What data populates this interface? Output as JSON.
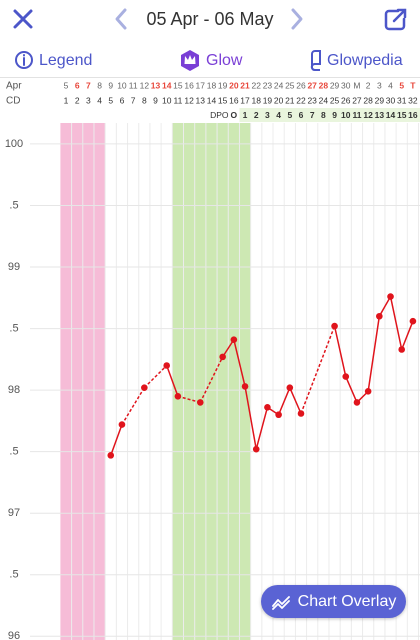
{
  "header": {
    "date_range": "05 Apr - 06 May"
  },
  "toolbar": {
    "legend": "Legend",
    "glow": "Glow",
    "glowpedia": "Glowpedia"
  },
  "button": {
    "label": "Chart Overlay"
  },
  "chart_data": {
    "type": "line",
    "month_label": "Apr",
    "cd_label": "CD",
    "dpo_label": "DPO",
    "dates": [
      "5",
      "6",
      "7",
      "8",
      "9",
      "10",
      "11",
      "12",
      "13",
      "14",
      "15",
      "16",
      "17",
      "18",
      "19",
      "20",
      "21",
      "22",
      "23",
      "24",
      "25",
      "26",
      "27",
      "28",
      "29",
      "30",
      "M",
      "2",
      "3",
      "4",
      "5",
      "T"
    ],
    "red_dates": [
      1,
      2,
      8,
      9,
      15,
      16,
      22,
      23,
      30,
      31
    ],
    "x": [
      1,
      2,
      3,
      4,
      5,
      6,
      7,
      8,
      9,
      10,
      11,
      12,
      13,
      14,
      15,
      16,
      17,
      18,
      19,
      20,
      21,
      22,
      23,
      24,
      25,
      26,
      27,
      28,
      29,
      30,
      31,
      32
    ],
    "dpo": [
      null,
      null,
      null,
      null,
      null,
      null,
      null,
      null,
      null,
      null,
      null,
      null,
      null,
      null,
      null,
      "O",
      1,
      2,
      3,
      4,
      5,
      6,
      7,
      8,
      9,
      10,
      11,
      12,
      13,
      14,
      15,
      16
    ],
    "values": [
      null,
      null,
      null,
      null,
      97.47,
      97.72,
      null,
      98.02,
      null,
      98.2,
      97.95,
      null,
      97.9,
      null,
      98.27,
      98.41,
      98.03,
      97.52,
      97.86,
      97.8,
      98.02,
      97.81,
      null,
      null,
      98.52,
      98.11,
      97.9,
      97.99,
      98.6,
      98.76,
      98.33,
      98.56
    ],
    "color": "#e0141c",
    "xlim": [
      0.5,
      32.5
    ],
    "ylim": [
      95.97,
      100.17
    ],
    "yticks": [
      100,
      {
        "value": 99.5,
        "label": ".5"
      },
      99,
      {
        "value": 98.5,
        "label": ".5"
      },
      98,
      {
        "value": 97.5,
        "label": ".5"
      },
      97,
      {
        "value": 96.5,
        "label": ".5"
      },
      96
    ],
    "grid": true,
    "period_band": [
      1,
      4
    ],
    "period_color": "#f6bcd7",
    "fertile_band": [
      11,
      17
    ],
    "fertile_color": "#cde8b3",
    "weekend_color": "#e8473b"
  }
}
